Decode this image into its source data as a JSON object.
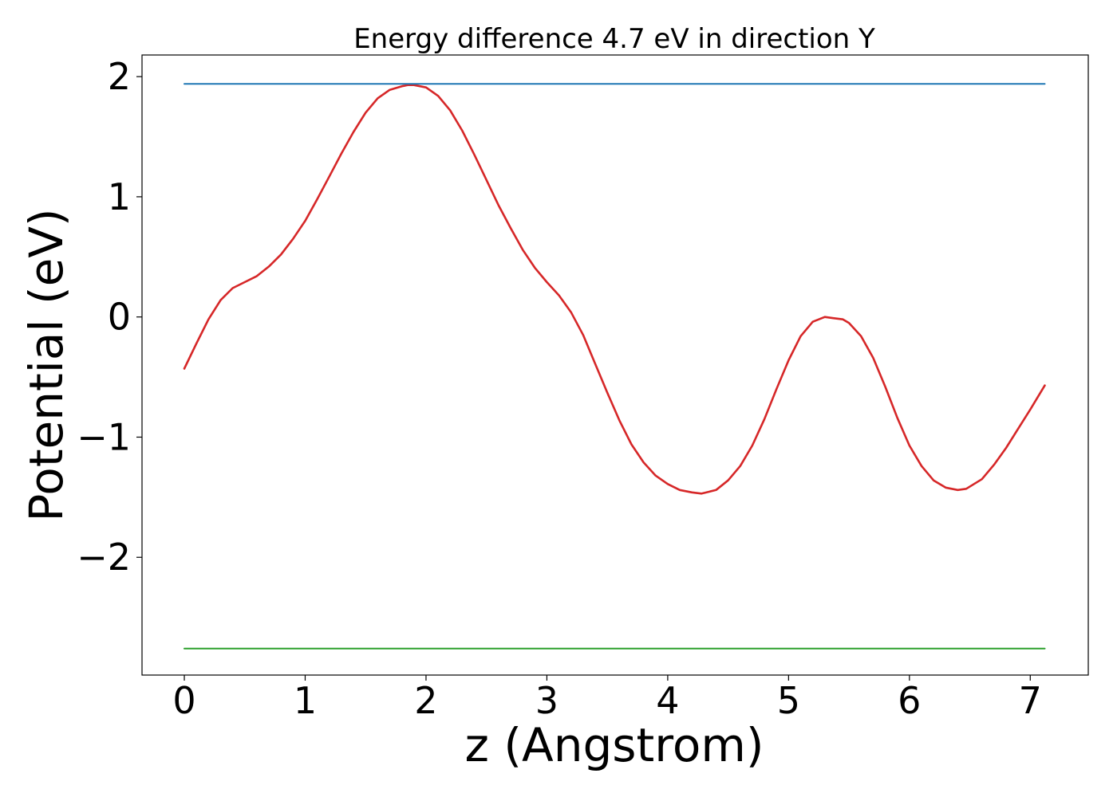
{
  "chart_data": {
    "type": "line",
    "title": "Energy difference 4.7 eV in direction Y",
    "xlabel": "z (Angstrom)",
    "ylabel": "Potential (eV)",
    "xlim": [
      -0.35,
      7.48
    ],
    "ylim": [
      -2.98,
      2.18
    ],
    "grid": false,
    "legend": "none",
    "x_ticks": [
      0,
      1,
      2,
      3,
      4,
      5,
      6,
      7
    ],
    "x_tick_labels": [
      "0",
      "1",
      "2",
      "3",
      "4",
      "5",
      "6",
      "7"
    ],
    "y_ticks": [
      -2,
      -1,
      0,
      1,
      2
    ],
    "y_tick_labels": [
      "−2",
      "−1",
      "0",
      "1",
      "2"
    ],
    "series": [
      {
        "color": "#d62728",
        "kind": "curve",
        "x": [
          0.0,
          0.1,
          0.2,
          0.3,
          0.4,
          0.5,
          0.6,
          0.7,
          0.8,
          0.9,
          1.0,
          1.1,
          1.2,
          1.3,
          1.4,
          1.5,
          1.6,
          1.7,
          1.8,
          1.85,
          1.9,
          2.0,
          2.1,
          2.2,
          2.3,
          2.4,
          2.5,
          2.6,
          2.7,
          2.8,
          2.9,
          3.0,
          3.1,
          3.2,
          3.3,
          3.4,
          3.5,
          3.6,
          3.7,
          3.8,
          3.9,
          4.0,
          4.1,
          4.2,
          4.28,
          4.4,
          4.5,
          4.6,
          4.7,
          4.8,
          4.9,
          5.0,
          5.1,
          5.2,
          5.3,
          5.37,
          5.45,
          5.5,
          5.6,
          5.7,
          5.8,
          5.9,
          6.0,
          6.1,
          6.2,
          6.3,
          6.4,
          6.47,
          6.6,
          6.7,
          6.8,
          6.9,
          7.0,
          7.12
        ],
        "y": [
          -0.43,
          -0.22,
          -0.02,
          0.14,
          0.24,
          0.29,
          0.34,
          0.42,
          0.52,
          0.65,
          0.8,
          0.98,
          1.17,
          1.36,
          1.54,
          1.7,
          1.82,
          1.89,
          1.92,
          1.93,
          1.93,
          1.91,
          1.84,
          1.72,
          1.55,
          1.35,
          1.14,
          0.93,
          0.74,
          0.56,
          0.41,
          0.29,
          0.18,
          0.04,
          -0.15,
          -0.39,
          -0.63,
          -0.86,
          -1.06,
          -1.21,
          -1.32,
          -1.39,
          -1.44,
          -1.46,
          -1.47,
          -1.44,
          -1.36,
          -1.24,
          -1.07,
          -0.85,
          -0.6,
          -0.36,
          -0.16,
          -0.04,
          0.0,
          -0.01,
          -0.02,
          -0.05,
          -0.16,
          -0.34,
          -0.58,
          -0.84,
          -1.07,
          -1.24,
          -1.36,
          -1.42,
          -1.44,
          -1.43,
          -1.35,
          -1.23,
          -1.09,
          -0.93,
          -0.77,
          -0.57
        ]
      },
      {
        "color": "#1f77b4",
        "kind": "hline",
        "x": [
          0,
          7.12
        ],
        "y": [
          1.94,
          1.94
        ]
      },
      {
        "color": "#2ca02c",
        "kind": "hline",
        "x": [
          0,
          7.12
        ],
        "y": [
          -2.76,
          -2.76
        ]
      }
    ]
  }
}
